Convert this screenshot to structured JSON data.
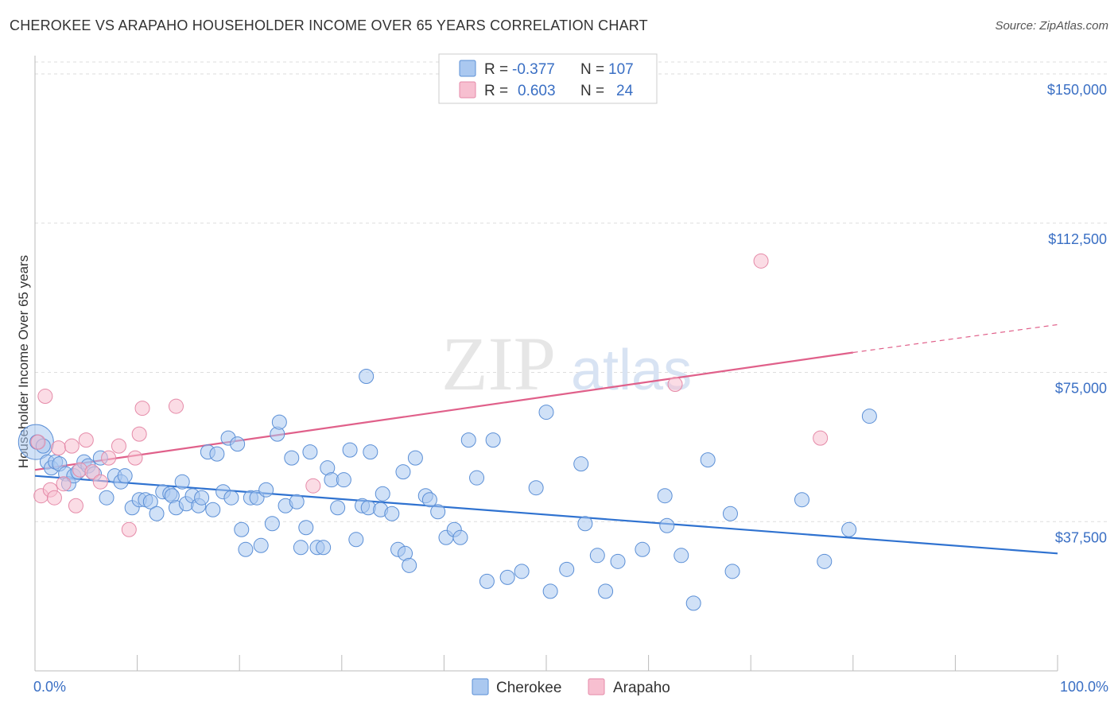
{
  "title": "CHEROKEE VS ARAPAHO HOUSEHOLDER INCOME OVER 65 YEARS CORRELATION CHART",
  "source": "Source: ZipAtlas.com",
  "watermark": {
    "zip": "ZIP",
    "atlas": "atlas"
  },
  "legend": {
    "rows": [
      {
        "r_label": "R =",
        "r_value": "-0.377",
        "n_label": "N =",
        "n_value": "107"
      },
      {
        "r_label": "R =",
        "r_value": "0.603",
        "n_label": "N =",
        "n_value": "24"
      }
    ]
  },
  "bottom_legend": [
    "Cherokee",
    "Arapaho"
  ],
  "colors": {
    "cherokee_fill": "#aac8f0",
    "cherokee_stroke": "#5b8fd6",
    "cherokee_line": "#2f72d0",
    "arapaho_fill": "#f7bfd0",
    "arapaho_stroke": "#e58aa8",
    "arapaho_line": "#e0608a",
    "grid": "#dddddd",
    "axis_label": "#3a6fc4"
  },
  "chart_data": {
    "type": "scatter",
    "title": "CHEROKEE VS ARAPAHO HOUSEHOLDER INCOME OVER 65 YEARS CORRELATION CHART",
    "xlabel": "",
    "ylabel": "Householder Income Over 65 years",
    "xlim": [
      0,
      100
    ],
    "ylim": [
      0,
      153000
    ],
    "x_tick_labels": [
      "0.0%",
      "100.0%"
    ],
    "y_ticks": [
      37500,
      75000,
      112500,
      150000
    ],
    "y_tick_labels": [
      "$37,500",
      "$75,000",
      "$112,500",
      "$150,000"
    ],
    "series": [
      {
        "name": "Cherokee",
        "r": -0.377,
        "n": 107,
        "trend": {
          "x": [
            0,
            100
          ],
          "y": [
            49000,
            29500
          ]
        },
        "points": [
          [
            0.2,
            57500
          ],
          [
            0.8,
            56500
          ],
          [
            1.2,
            52500
          ],
          [
            1.6,
            51000
          ],
          [
            2.0,
            52500
          ],
          [
            2.4,
            52000
          ],
          [
            3.0,
            49500
          ],
          [
            3.3,
            47000
          ],
          [
            3.8,
            49000
          ],
          [
            4.2,
            50000
          ],
          [
            4.8,
            52500
          ],
          [
            5.2,
            51500
          ],
          [
            5.8,
            49500
          ],
          [
            6.4,
            53500
          ],
          [
            7.0,
            43500
          ],
          [
            7.8,
            49000
          ],
          [
            8.4,
            47500
          ],
          [
            8.8,
            49000
          ],
          [
            9.5,
            41000
          ],
          [
            10.2,
            43000
          ],
          [
            10.8,
            43000
          ],
          [
            11.3,
            42500
          ],
          [
            11.9,
            39500
          ],
          [
            12.5,
            45000
          ],
          [
            13.2,
            44500
          ],
          [
            13.4,
            44000
          ],
          [
            13.8,
            41000
          ],
          [
            14.4,
            47500
          ],
          [
            14.8,
            42000
          ],
          [
            15.4,
            44000
          ],
          [
            16.0,
            41500
          ],
          [
            16.3,
            43500
          ],
          [
            16.9,
            55000
          ],
          [
            17.4,
            40500
          ],
          [
            17.8,
            54500
          ],
          [
            18.4,
            45000
          ],
          [
            18.9,
            58500
          ],
          [
            19.2,
            43500
          ],
          [
            19.8,
            57000
          ],
          [
            20.2,
            35500
          ],
          [
            20.6,
            30500
          ],
          [
            21.1,
            43500
          ],
          [
            21.7,
            43500
          ],
          [
            22.1,
            31500
          ],
          [
            22.6,
            45500
          ],
          [
            23.2,
            37000
          ],
          [
            23.7,
            59500
          ],
          [
            23.9,
            62500
          ],
          [
            24.5,
            41500
          ],
          [
            25.1,
            53500
          ],
          [
            25.6,
            42500
          ],
          [
            26.0,
            31000
          ],
          [
            26.5,
            36000
          ],
          [
            26.9,
            55000
          ],
          [
            27.6,
            31000
          ],
          [
            28.2,
            31000
          ],
          [
            28.6,
            51000
          ],
          [
            29.0,
            48000
          ],
          [
            29.6,
            41000
          ],
          [
            30.2,
            48000
          ],
          [
            30.8,
            55500
          ],
          [
            31.4,
            33000
          ],
          [
            32.0,
            41500
          ],
          [
            32.6,
            41000
          ],
          [
            32.4,
            74000
          ],
          [
            32.8,
            55000
          ],
          [
            33.8,
            40500
          ],
          [
            34.0,
            44500
          ],
          [
            34.9,
            39500
          ],
          [
            35.5,
            30500
          ],
          [
            36.0,
            50000
          ],
          [
            36.2,
            29500
          ],
          [
            36.6,
            26500
          ],
          [
            37.2,
            53500
          ],
          [
            38.2,
            44000
          ],
          [
            38.6,
            43000
          ],
          [
            39.4,
            40000
          ],
          [
            40.2,
            33500
          ],
          [
            41.0,
            35500
          ],
          [
            41.6,
            33500
          ],
          [
            42.4,
            58000
          ],
          [
            43.2,
            48500
          ],
          [
            44.2,
            22500
          ],
          [
            44.8,
            58000
          ],
          [
            46.2,
            23500
          ],
          [
            47.6,
            25000
          ],
          [
            49.0,
            46000
          ],
          [
            50.0,
            65000
          ],
          [
            50.4,
            20000
          ],
          [
            52.0,
            25500
          ],
          [
            53.4,
            52000
          ],
          [
            53.8,
            37000
          ],
          [
            55.0,
            29000
          ],
          [
            55.8,
            20000
          ],
          [
            57.0,
            27500
          ],
          [
            59.4,
            30500
          ],
          [
            61.6,
            44000
          ],
          [
            61.8,
            36500
          ],
          [
            63.2,
            29000
          ],
          [
            64.4,
            17000
          ],
          [
            65.8,
            53000
          ],
          [
            68.0,
            39500
          ],
          [
            68.2,
            25000
          ],
          [
            75.0,
            43000
          ],
          [
            77.2,
            27500
          ],
          [
            79.6,
            35500
          ],
          [
            81.6,
            64000
          ]
        ]
      },
      {
        "name": "Arapaho",
        "r": 0.603,
        "n": 24,
        "trend": {
          "x": [
            0,
            80
          ],
          "y": [
            50500,
            80000
          ]
        },
        "trend_dashed": {
          "x": [
            80,
            100
          ],
          "y": [
            80000,
            87000
          ]
        },
        "points": [
          [
            0.3,
            57500
          ],
          [
            0.6,
            44000
          ],
          [
            1.0,
            69000
          ],
          [
            1.5,
            45500
          ],
          [
            1.9,
            43500
          ],
          [
            2.3,
            56000
          ],
          [
            2.8,
            47000
          ],
          [
            3.6,
            56500
          ],
          [
            4.0,
            41500
          ],
          [
            4.4,
            50500
          ],
          [
            5.0,
            58000
          ],
          [
            5.6,
            50000
          ],
          [
            6.4,
            47500
          ],
          [
            7.2,
            53500
          ],
          [
            8.2,
            56500
          ],
          [
            9.2,
            35500
          ],
          [
            9.8,
            53500
          ],
          [
            10.2,
            59500
          ],
          [
            10.5,
            66000
          ],
          [
            13.8,
            66500
          ],
          [
            27.2,
            46500
          ],
          [
            62.6,
            72000
          ],
          [
            71.0,
            103000
          ],
          [
            76.8,
            58500
          ]
        ]
      }
    ]
  }
}
